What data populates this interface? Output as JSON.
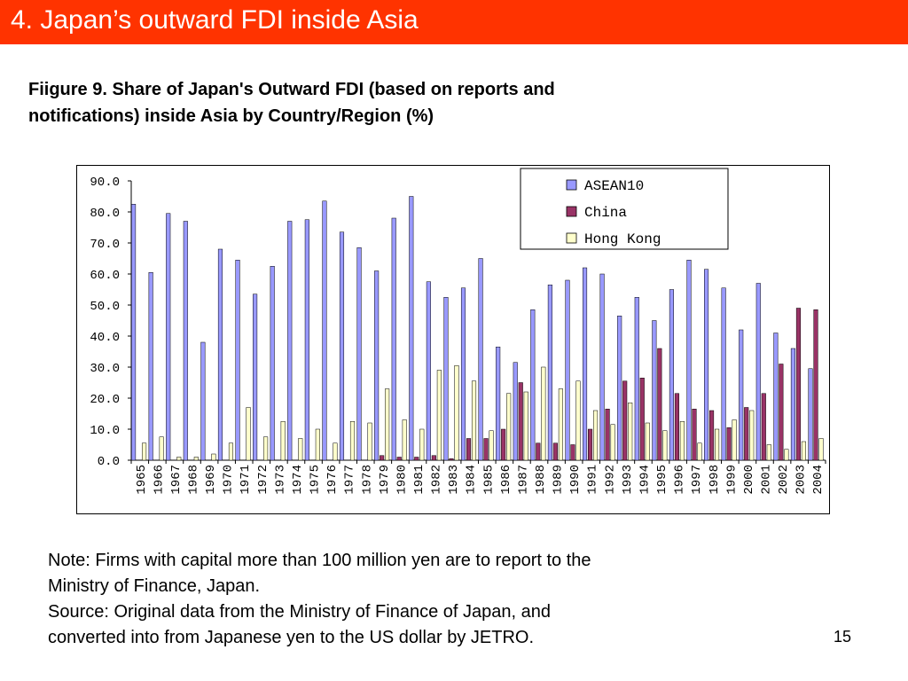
{
  "slide": {
    "title": "4. Japan’s outward FDI inside Asia",
    "page_number": "15",
    "colors": {
      "title_bar": "#ff3300",
      "title_text": "#ffffff"
    }
  },
  "figure": {
    "caption_line1": "Fiigure 9. Share of Japan's Outward FDI (based on reports and",
    "caption_line2": "notifications) inside Asia by Country/Region (%)"
  },
  "notes": {
    "line1": "Note: Firms with capital more than 100 million yen are to report to the",
    "line2": "Ministry of Finance, Japan.",
    "line3": "Source: Original data from the Ministry of Finance of Japan, and",
    "line4": "converted into from Japanese yen to the US dollar by JETRO."
  },
  "chart_data": {
    "type": "bar",
    "title": "",
    "xlabel": "",
    "ylabel": "",
    "ylim": [
      0,
      90
    ],
    "yticks": [
      "0.0",
      "10.0",
      "20.0",
      "30.0",
      "40.0",
      "50.0",
      "60.0",
      "70.0",
      "80.0",
      "90.0"
    ],
    "grid": false,
    "legend_position": "top-right",
    "categories": [
      "1965",
      "1966",
      "1967",
      "1968",
      "1969",
      "1970",
      "1971",
      "1972",
      "1973",
      "1974",
      "1975",
      "1976",
      "1977",
      "1978",
      "1979",
      "1980",
      "1981",
      "1982",
      "1983",
      "1984",
      "1985",
      "1986",
      "1987",
      "1988",
      "1989",
      "1990",
      "1991",
      "1992",
      "1993",
      "1994",
      "1995",
      "1996",
      "1997",
      "1998",
      "1999",
      "2000",
      "2001",
      "2002",
      "2003",
      "2004"
    ],
    "series": [
      {
        "name": "ASEAN10",
        "color": "#9999ff",
        "values": [
          82.5,
          60.5,
          79.5,
          77,
          38,
          68,
          64.5,
          53.5,
          62.5,
          77,
          77.5,
          83.5,
          73.5,
          68.5,
          61,
          78,
          85,
          57.5,
          52.5,
          55.5,
          65,
          36.5,
          31.5,
          48.5,
          56.5,
          58,
          62,
          60,
          46.5,
          52.5,
          45,
          55,
          64.5,
          61.5,
          55.5,
          42,
          57,
          41,
          36,
          29.5
        ]
      },
      {
        "name": "China",
        "color": "#993366",
        "values": [
          0,
          0,
          0,
          0,
          0,
          0,
          0,
          0,
          0,
          0,
          0,
          0,
          0,
          0,
          1.5,
          1,
          1,
          1.5,
          0.5,
          7,
          7,
          10,
          25,
          5.5,
          5.5,
          5,
          10,
          16.5,
          25.5,
          26.5,
          36,
          21.5,
          16.5,
          16,
          10.5,
          17,
          21.5,
          31,
          49,
          48.5
        ]
      },
      {
        "name": "Hong Kong",
        "color": "#ffffcc",
        "values": [
          5.5,
          7.5,
          1,
          1,
          2,
          5.5,
          17,
          7.5,
          12.5,
          7,
          10,
          5.5,
          12.5,
          12,
          23,
          13,
          10,
          29,
          30.5,
          25.5,
          9.5,
          21.5,
          22,
          30,
          23,
          25.5,
          16,
          11.5,
          18.5,
          12,
          9.5,
          12.5,
          5.5,
          10,
          13,
          16,
          5,
          3.5,
          6,
          7
        ]
      }
    ]
  }
}
